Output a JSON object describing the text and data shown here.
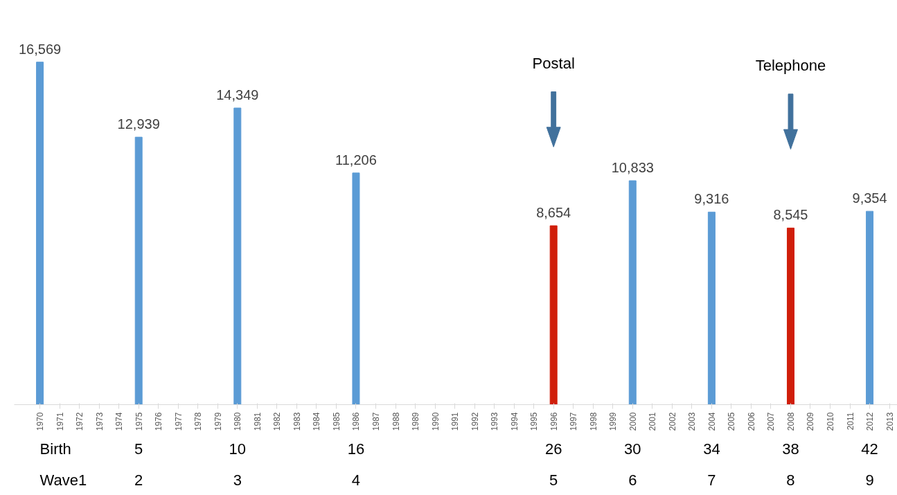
{
  "chart_data": {
    "type": "bar",
    "categories": [
      "1970",
      "1971",
      "1972",
      "1973",
      "1974",
      "1975",
      "1976",
      "1977",
      "1978",
      "1979",
      "1980",
      "1981",
      "1982",
      "1983",
      "1984",
      "1985",
      "1986",
      "1987",
      "1988",
      "1989",
      "1990",
      "1991",
      "1992",
      "1993",
      "1994",
      "1995",
      "1996",
      "1997",
      "1998",
      "1999",
      "2000",
      "2001",
      "2002",
      "2003",
      "2004",
      "2005",
      "2006",
      "2007",
      "2008",
      "2009",
      "2010",
      "2011",
      "2012",
      "2013"
    ],
    "values": [
      16569,
      null,
      null,
      null,
      null,
      12939,
      null,
      null,
      null,
      null,
      14349,
      null,
      null,
      null,
      null,
      null,
      11206,
      null,
      null,
      null,
      null,
      null,
      null,
      null,
      null,
      null,
      8654,
      null,
      null,
      null,
      10833,
      null,
      null,
      null,
      9316,
      null,
      null,
      null,
      8545,
      null,
      null,
      null,
      9354,
      null
    ],
    "value_labels": [
      "16,569",
      null,
      null,
      null,
      null,
      "12,939",
      null,
      null,
      null,
      null,
      "14,349",
      null,
      null,
      null,
      null,
      null,
      "11,206",
      null,
      null,
      null,
      null,
      null,
      null,
      null,
      null,
      null,
      "8,654",
      null,
      null,
      null,
      "10,833",
      null,
      null,
      null,
      "9,316",
      null,
      null,
      null,
      "8,545",
      null,
      null,
      null,
      "9,354",
      null
    ],
    "colors": [
      "#5b9bd5",
      "#5b9bd5",
      "#5b9bd5",
      "#5b9bd5",
      "#5b9bd5",
      "#5b9bd5",
      "#5b9bd5",
      "#5b9bd5",
      "#5b9bd5",
      "#5b9bd5",
      "#5b9bd5",
      "#5b9bd5",
      "#5b9bd5",
      "#5b9bd5",
      "#5b9bd5",
      "#5b9bd5",
      "#5b9bd5",
      "#5b9bd5",
      "#5b9bd5",
      "#5b9bd5",
      "#5b9bd5",
      "#5b9bd5",
      "#5b9bd5",
      "#5b9bd5",
      "#5b9bd5",
      "#5b9bd5",
      "#d01e0a",
      "#5b9bd5",
      "#5b9bd5",
      "#5b9bd5",
      "#5b9bd5",
      "#5b9bd5",
      "#5b9bd5",
      "#5b9bd5",
      "#5b9bd5",
      "#5b9bd5",
      "#5b9bd5",
      "#5b9bd5",
      "#d01e0a",
      "#5b9bd5",
      "#5b9bd5",
      "#5b9bd5",
      "#5b9bd5",
      "#5b9bd5"
    ],
    "annotations": [
      "Postal",
      "Telephone",
      "Birth",
      "5",
      "10",
      "16",
      "26",
      "30",
      "34",
      "38",
      "42",
      "Wave1",
      "2",
      "3",
      "4",
      "5",
      "6",
      "7",
      "8",
      "9"
    ]
  }
}
